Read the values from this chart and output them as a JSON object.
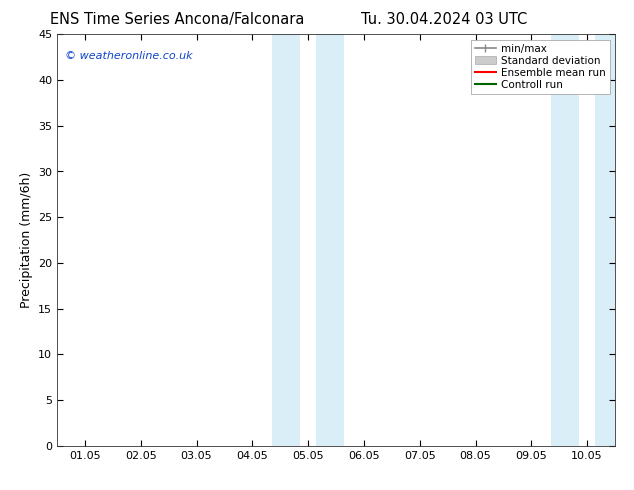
{
  "title_left": "ENS Time Series Ancona/Falconara",
  "title_right": "Tu. 30.04.2024 03 UTC",
  "ylabel": "Precipitation (mm/6h)",
  "watermark": "© weatheronline.co.uk",
  "watermark_color": "#1144cc",
  "ylim": [
    0,
    45
  ],
  "yticks": [
    0,
    5,
    10,
    15,
    20,
    25,
    30,
    35,
    40,
    45
  ],
  "xtick_labels": [
    "01.05",
    "02.05",
    "03.05",
    "04.05",
    "05.05",
    "06.05",
    "07.05",
    "08.05",
    "09.05",
    "10.05"
  ],
  "xtick_positions": [
    0,
    1,
    2,
    3,
    4,
    5,
    6,
    7,
    8,
    9
  ],
  "xlim": [
    -0.5,
    9.5
  ],
  "shaded_regions": [
    {
      "xmin": 3.35,
      "xmax": 3.85,
      "color": "#daeef8"
    },
    {
      "xmin": 4.15,
      "xmax": 4.65,
      "color": "#daeef8"
    },
    {
      "xmin": 8.35,
      "xmax": 8.85,
      "color": "#daeef8"
    },
    {
      "xmin": 9.15,
      "xmax": 9.5,
      "color": "#daeef8"
    }
  ],
  "legend_items": [
    {
      "label": "min/max",
      "color": "#888888",
      "lw": 1.2,
      "style": "minmax"
    },
    {
      "label": "Standard deviation",
      "color": "#cccccc",
      "lw": 8,
      "style": "band"
    },
    {
      "label": "Ensemble mean run",
      "color": "#ff0000",
      "lw": 1.5,
      "style": "line"
    },
    {
      "label": "Controll run",
      "color": "#006600",
      "lw": 1.5,
      "style": "line"
    }
  ],
  "background_color": "#ffffff",
  "plot_bg_color": "#ffffff",
  "title_fontsize": 10.5,
  "label_fontsize": 9,
  "tick_fontsize": 8,
  "legend_fontsize": 7.5
}
